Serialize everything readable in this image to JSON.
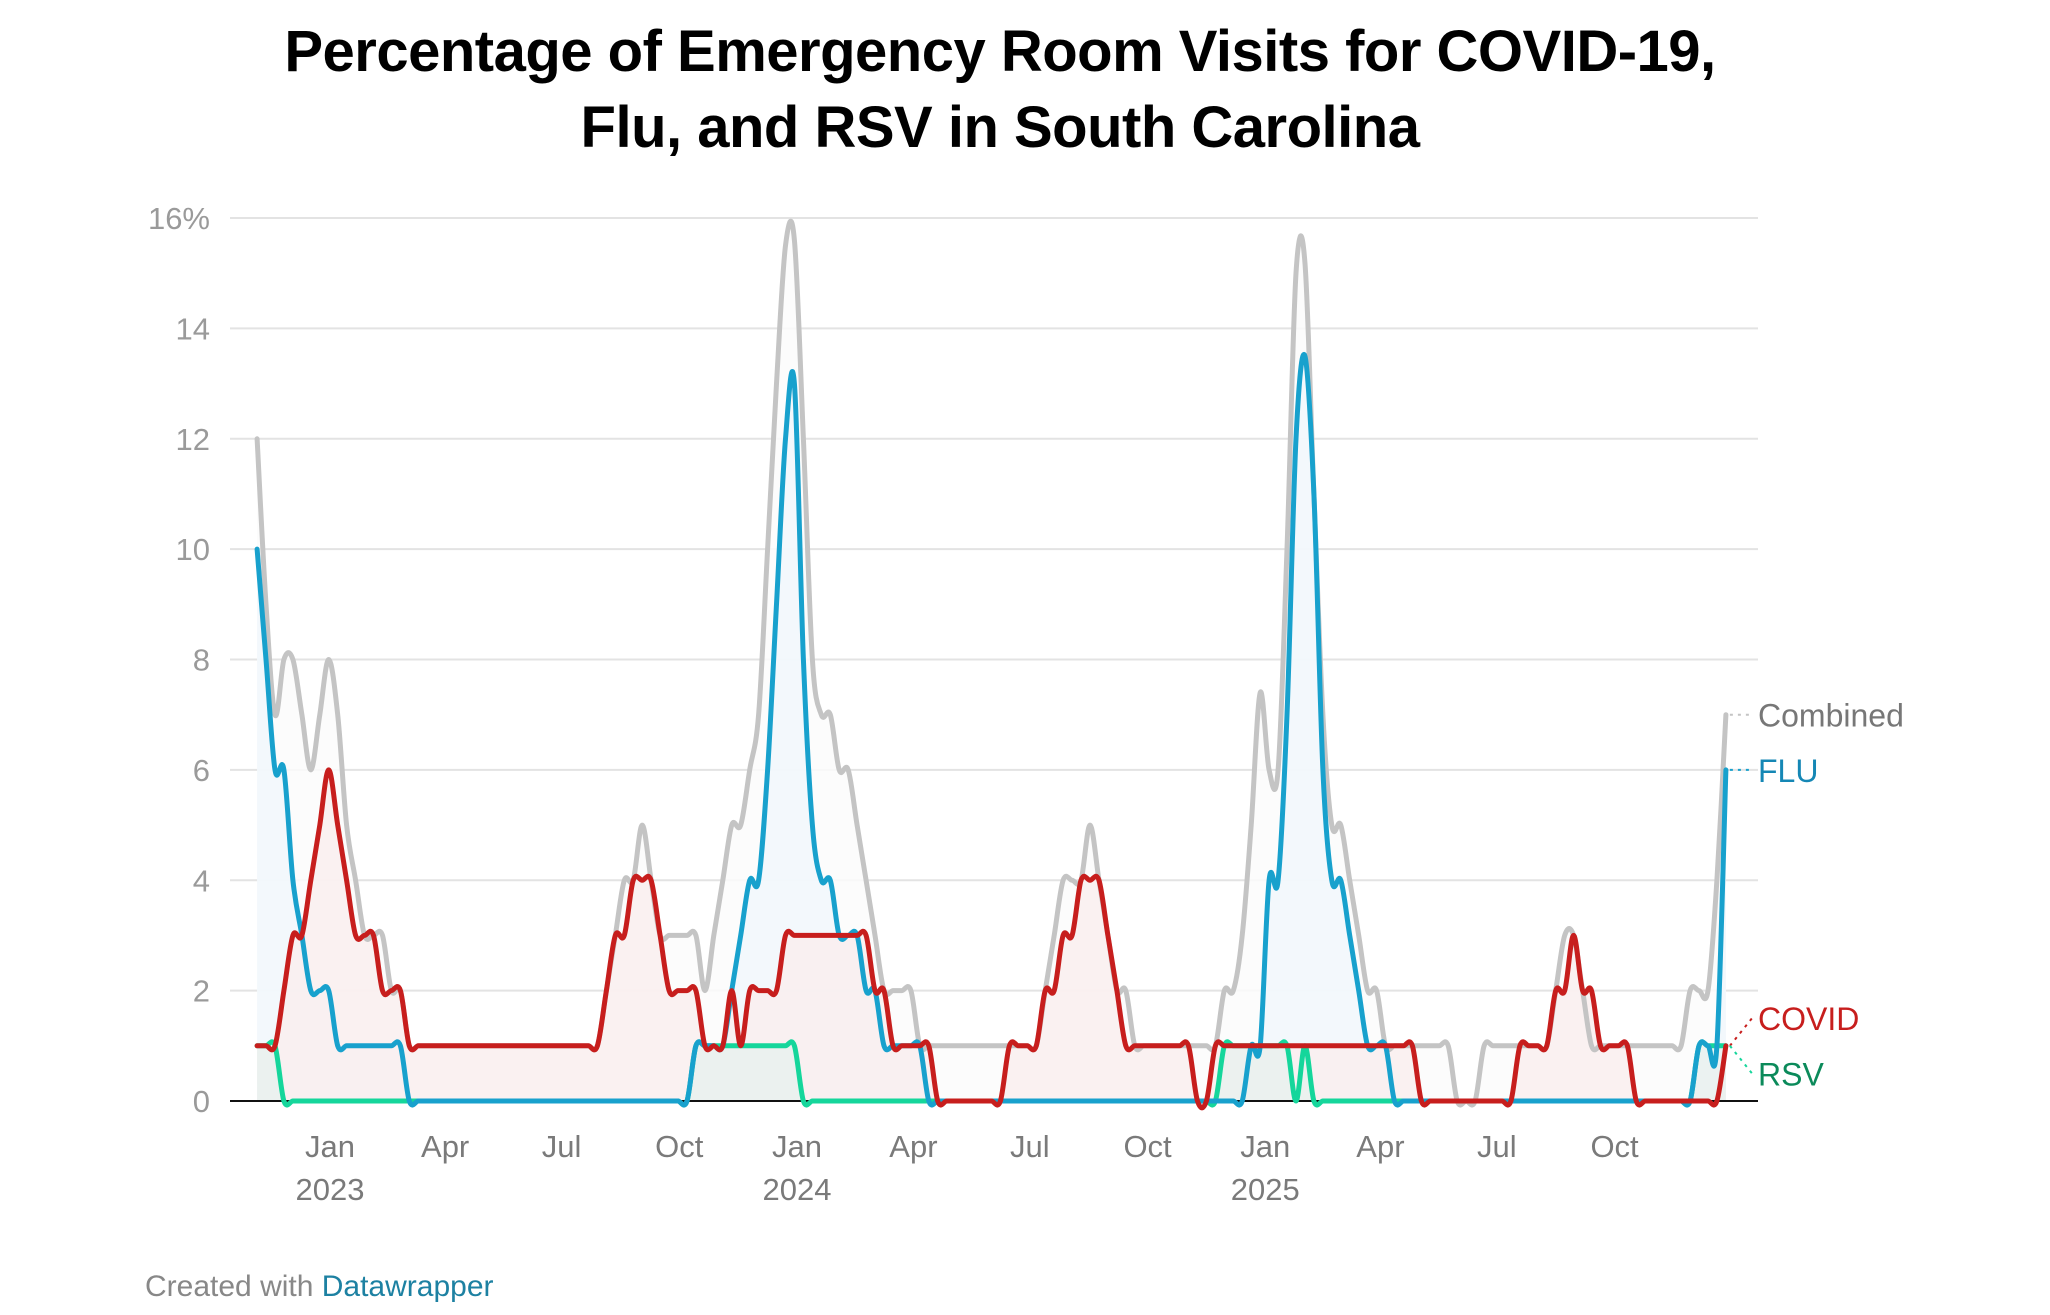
{
  "title_lines": [
    "Percentage of Emergency Room Visits for COVID-19,",
    "Flu, and RSV in South Carolina"
  ],
  "footer": {
    "prefix": "Created with ",
    "brand": "Datawrapper"
  },
  "chart_data": {
    "type": "line",
    "title": "Percentage of Emergency Room Visits for COVID-19, Flu, and RSV in South Carolina",
    "xlabel": "",
    "ylabel": "",
    "ylim": [
      0,
      16
    ],
    "y_ticks": [
      0,
      2,
      4,
      6,
      8,
      10,
      12,
      14,
      16
    ],
    "y_tick_labels": [
      "0",
      "2",
      "4",
      "6",
      "8",
      "10",
      "12",
      "14",
      "16%"
    ],
    "x_ticks": [
      {
        "date": "2023-01-01",
        "label": "Jan",
        "year": "2023"
      },
      {
        "date": "2023-04-01",
        "label": "Apr",
        "year": ""
      },
      {
        "date": "2023-07-01",
        "label": "Jul",
        "year": ""
      },
      {
        "date": "2023-10-01",
        "label": "Oct",
        "year": ""
      },
      {
        "date": "2024-01-01",
        "label": "Jan",
        "year": "2024"
      },
      {
        "date": "2024-04-01",
        "label": "Apr",
        "year": ""
      },
      {
        "date": "2024-07-01",
        "label": "Jul",
        "year": ""
      },
      {
        "date": "2024-10-01",
        "label": "Oct",
        "year": ""
      },
      {
        "date": "2025-01-01",
        "label": "Jan",
        "year": "2025"
      },
      {
        "date": "2025-04-01",
        "label": "Apr",
        "year": ""
      },
      {
        "date": "2025-07-01",
        "label": "Jul",
        "year": ""
      },
      {
        "date": "2025-10-01",
        "label": "Oct",
        "year": ""
      }
    ],
    "grid": true,
    "legend": "direct labels at right end of lines",
    "x": [
      "2022-11-05",
      "2022-11-12",
      "2022-11-19",
      "2022-11-26",
      "2022-12-03",
      "2022-12-10",
      "2022-12-17",
      "2022-12-24",
      "2022-12-31",
      "2023-01-07",
      "2023-01-14",
      "2023-01-21",
      "2023-01-28",
      "2023-02-04",
      "2023-02-11",
      "2023-02-18",
      "2023-02-25",
      "2023-03-04",
      "2023-03-11",
      "2023-03-18",
      "2023-03-25",
      "2023-04-01",
      "2023-04-08",
      "2023-04-15",
      "2023-04-22",
      "2023-04-29",
      "2023-05-06",
      "2023-05-13",
      "2023-05-20",
      "2023-05-27",
      "2023-06-03",
      "2023-06-10",
      "2023-06-17",
      "2023-06-24",
      "2023-07-01",
      "2023-07-08",
      "2023-07-15",
      "2023-07-22",
      "2023-07-29",
      "2023-08-05",
      "2023-08-12",
      "2023-08-19",
      "2023-08-26",
      "2023-09-02",
      "2023-09-09",
      "2023-09-16",
      "2023-09-23",
      "2023-09-30",
      "2023-10-07",
      "2023-10-14",
      "2023-10-21",
      "2023-10-28",
      "2023-11-04",
      "2023-11-11",
      "2023-11-18",
      "2023-11-25",
      "2023-12-02",
      "2023-12-09",
      "2023-12-16",
      "2023-12-23",
      "2023-12-30",
      "2024-01-06",
      "2024-01-13",
      "2024-01-20",
      "2024-01-27",
      "2024-02-03",
      "2024-02-10",
      "2024-02-17",
      "2024-02-24",
      "2024-03-02",
      "2024-03-09",
      "2024-03-16",
      "2024-03-23",
      "2024-03-30",
      "2024-04-06",
      "2024-04-13",
      "2024-04-20",
      "2024-04-27",
      "2024-05-04",
      "2024-05-11",
      "2024-05-18",
      "2024-05-25",
      "2024-06-01",
      "2024-06-08",
      "2024-06-15",
      "2024-06-22",
      "2024-06-29",
      "2024-07-06",
      "2024-07-13",
      "2024-07-20",
      "2024-07-27",
      "2024-08-03",
      "2024-08-10",
      "2024-08-17",
      "2024-08-24",
      "2024-08-31",
      "2024-09-07",
      "2024-09-14",
      "2024-09-21",
      "2024-09-28",
      "2024-10-05",
      "2024-10-12",
      "2024-10-19",
      "2024-10-26",
      "2024-11-02",
      "2024-11-09",
      "2024-11-16",
      "2024-11-23",
      "2024-11-30",
      "2024-12-07",
      "2024-12-14",
      "2024-12-21",
      "2024-12-28",
      "2025-01-04",
      "2025-01-11",
      "2025-01-18",
      "2025-01-25",
      "2025-02-01",
      "2025-02-08",
      "2025-02-15",
      "2025-02-22",
      "2025-03-01",
      "2025-03-08",
      "2025-03-15",
      "2025-03-22",
      "2025-03-29",
      "2025-04-05",
      "2025-04-12",
      "2025-04-19",
      "2025-04-26",
      "2025-05-03",
      "2025-05-10",
      "2025-05-17",
      "2025-05-24",
      "2025-05-31",
      "2025-06-07",
      "2025-06-14",
      "2025-06-21",
      "2025-06-28",
      "2025-07-05",
      "2025-07-12",
      "2025-07-19",
      "2025-07-26",
      "2025-08-02",
      "2025-08-09",
      "2025-08-16",
      "2025-08-23",
      "2025-08-30",
      "2025-09-06",
      "2025-09-13",
      "2025-09-20",
      "2025-09-27",
      "2025-10-04",
      "2025-10-11",
      "2025-10-18",
      "2025-10-25",
      "2025-11-01",
      "2025-11-08",
      "2025-11-15",
      "2025-11-22",
      "2025-11-29",
      "2025-12-06",
      "2025-12-13",
      "2025-12-20",
      "2025-12-27"
    ],
    "series": [
      {
        "name": "Combined",
        "color": "#c4c4c4",
        "fill": "#fbfbfb",
        "values": [
          12,
          9,
          7,
          8,
          8,
          7,
          6,
          7,
          8,
          7,
          5,
          4,
          3,
          3,
          3,
          2,
          2,
          1,
          1,
          1,
          1,
          1,
          1,
          1,
          1,
          1,
          1,
          1,
          1,
          1,
          1,
          1,
          1,
          1,
          1,
          1,
          1,
          1,
          1,
          2,
          3,
          4,
          4,
          5,
          4,
          3,
          3,
          3,
          3,
          3,
          2,
          3,
          4,
          5,
          5,
          6,
          7,
          10,
          13,
          15.5,
          15.6,
          12,
          8,
          7,
          7,
          6,
          6,
          5,
          4,
          3,
          2,
          2,
          2,
          2,
          1,
          1,
          1,
          1,
          1,
          1,
          1,
          1,
          1,
          1,
          1,
          1,
          1,
          1,
          2,
          3,
          4,
          4,
          4,
          5,
          4,
          3,
          2,
          2,
          1,
          1,
          1,
          1,
          1,
          1,
          1,
          1,
          1,
          1,
          2,
          2,
          3,
          5,
          7.4,
          6,
          6,
          10,
          15,
          15.2,
          11,
          7,
          5,
          5,
          4,
          3,
          2,
          2,
          1,
          1,
          1,
          1,
          1,
          1,
          1,
          1,
          0,
          0,
          0,
          1,
          1,
          1,
          1,
          1,
          1,
          1,
          1,
          2,
          3,
          3,
          2,
          1,
          1,
          1,
          1,
          1,
          1,
          1,
          1,
          1,
          1,
          1,
          2,
          2,
          2,
          4,
          7
        ]
      },
      {
        "name": "FLU",
        "color": "#18a1cd",
        "fill": "#f1f7fc",
        "values": [
          10,
          8,
          6,
          6,
          4,
          3,
          2,
          2,
          2,
          1,
          1,
          1,
          1,
          1,
          1,
          1,
          1,
          0,
          0,
          0,
          0,
          0,
          0,
          0,
          0,
          0,
          0,
          0,
          0,
          0,
          0,
          0,
          0,
          0,
          0,
          0,
          0,
          0,
          0,
          0,
          0,
          0,
          0,
          0,
          0,
          0,
          0,
          0,
          0,
          1,
          1,
          1,
          1,
          2,
          3,
          4,
          4,
          6,
          9,
          12,
          13,
          8,
          5,
          4,
          4,
          3,
          3,
          3,
          2,
          2,
          1,
          1,
          1,
          1,
          1,
          0,
          0,
          0,
          0,
          0,
          0,
          0,
          0,
          0,
          0,
          0,
          0,
          0,
          0,
          0,
          0,
          0,
          0,
          0,
          0,
          0,
          0,
          0,
          0,
          0,
          0,
          0,
          0,
          0,
          0,
          0,
          0,
          0,
          0,
          0,
          0,
          1,
          1,
          4,
          4,
          7,
          12,
          13.5,
          11,
          6,
          4,
          4,
          3,
          2,
          1,
          1,
          1,
          0,
          0,
          0,
          0,
          0,
          0,
          0,
          0,
          0,
          0,
          0,
          0,
          0,
          0,
          0,
          0,
          0,
          0,
          0,
          0,
          0,
          0,
          0,
          0,
          0,
          0,
          0,
          0,
          0,
          0,
          0,
          0,
          0,
          0,
          1,
          1,
          1,
          6
        ]
      },
      {
        "name": "COVID",
        "color": "#c71e1d",
        "fill": "#f9eeee",
        "values": [
          1,
          1,
          1,
          2,
          3,
          3,
          4,
          5,
          6,
          5,
          4,
          3,
          3,
          3,
          2,
          2,
          2,
          1,
          1,
          1,
          1,
          1,
          1,
          1,
          1,
          1,
          1,
          1,
          1,
          1,
          1,
          1,
          1,
          1,
          1,
          1,
          1,
          1,
          1,
          2,
          3,
          3,
          4,
          4,
          4,
          3,
          2,
          2,
          2,
          2,
          1,
          1,
          1,
          2,
          1,
          2,
          2,
          2,
          2,
          3,
          3,
          3,
          3,
          3,
          3,
          3,
          3,
          3,
          3,
          2,
          2,
          1,
          1,
          1,
          1,
          1,
          0,
          0,
          0,
          0,
          0,
          0,
          0,
          0,
          1,
          1,
          1,
          1,
          2,
          2,
          3,
          3,
          4,
          4,
          4,
          3,
          2,
          1,
          1,
          1,
          1,
          1,
          1,
          1,
          1,
          0,
          0,
          1,
          1,
          1,
          1,
          1,
          1,
          1,
          1,
          1,
          1,
          1,
          1,
          1,
          1,
          1,
          1,
          1,
          1,
          1,
          1,
          1,
          1,
          1,
          0,
          0,
          0,
          0,
          0,
          0,
          0,
          0,
          0,
          0,
          0,
          1,
          1,
          1,
          1,
          2,
          2,
          3,
          2,
          2,
          1,
          1,
          1,
          1,
          0,
          0,
          0,
          0,
          0,
          0,
          0,
          0,
          0,
          0,
          1
        ]
      },
      {
        "name": "RSV",
        "color": "#15d69b",
        "label_color": "#0b8a5a",
        "fill": "#e9f1ee",
        "values": [
          1,
          1,
          1,
          0,
          0,
          0,
          0,
          0,
          0,
          0,
          0,
          0,
          0,
          0,
          0,
          0,
          0,
          0,
          0,
          0,
          0,
          0,
          0,
          0,
          0,
          0,
          0,
          0,
          0,
          0,
          0,
          0,
          0,
          0,
          0,
          0,
          0,
          0,
          0,
          0,
          0,
          0,
          0,
          0,
          0,
          0,
          0,
          0,
          0,
          1,
          1,
          1,
          1,
          1,
          1,
          1,
          1,
          1,
          1,
          1,
          1,
          0,
          0,
          0,
          0,
          0,
          0,
          0,
          0,
          0,
          0,
          0,
          0,
          0,
          0,
          0,
          0,
          0,
          0,
          0,
          0,
          0,
          0,
          0,
          0,
          0,
          0,
          0,
          0,
          0,
          0,
          0,
          0,
          0,
          0,
          0,
          0,
          0,
          0,
          0,
          0,
          0,
          0,
          0,
          0,
          0,
          0,
          0,
          1,
          1,
          1,
          1,
          1,
          1,
          1,
          1,
          0,
          1,
          0,
          0,
          0,
          0,
          0,
          0,
          0,
          0,
          0,
          0,
          0,
          0,
          0,
          0,
          0,
          0,
          0,
          0,
          0,
          0,
          0,
          0,
          0,
          0,
          0,
          0,
          0,
          0,
          0,
          0,
          0,
          0,
          0,
          0,
          0,
          0,
          0,
          0,
          0,
          0,
          0,
          0,
          0,
          1,
          1,
          1,
          1
        ]
      }
    ]
  }
}
